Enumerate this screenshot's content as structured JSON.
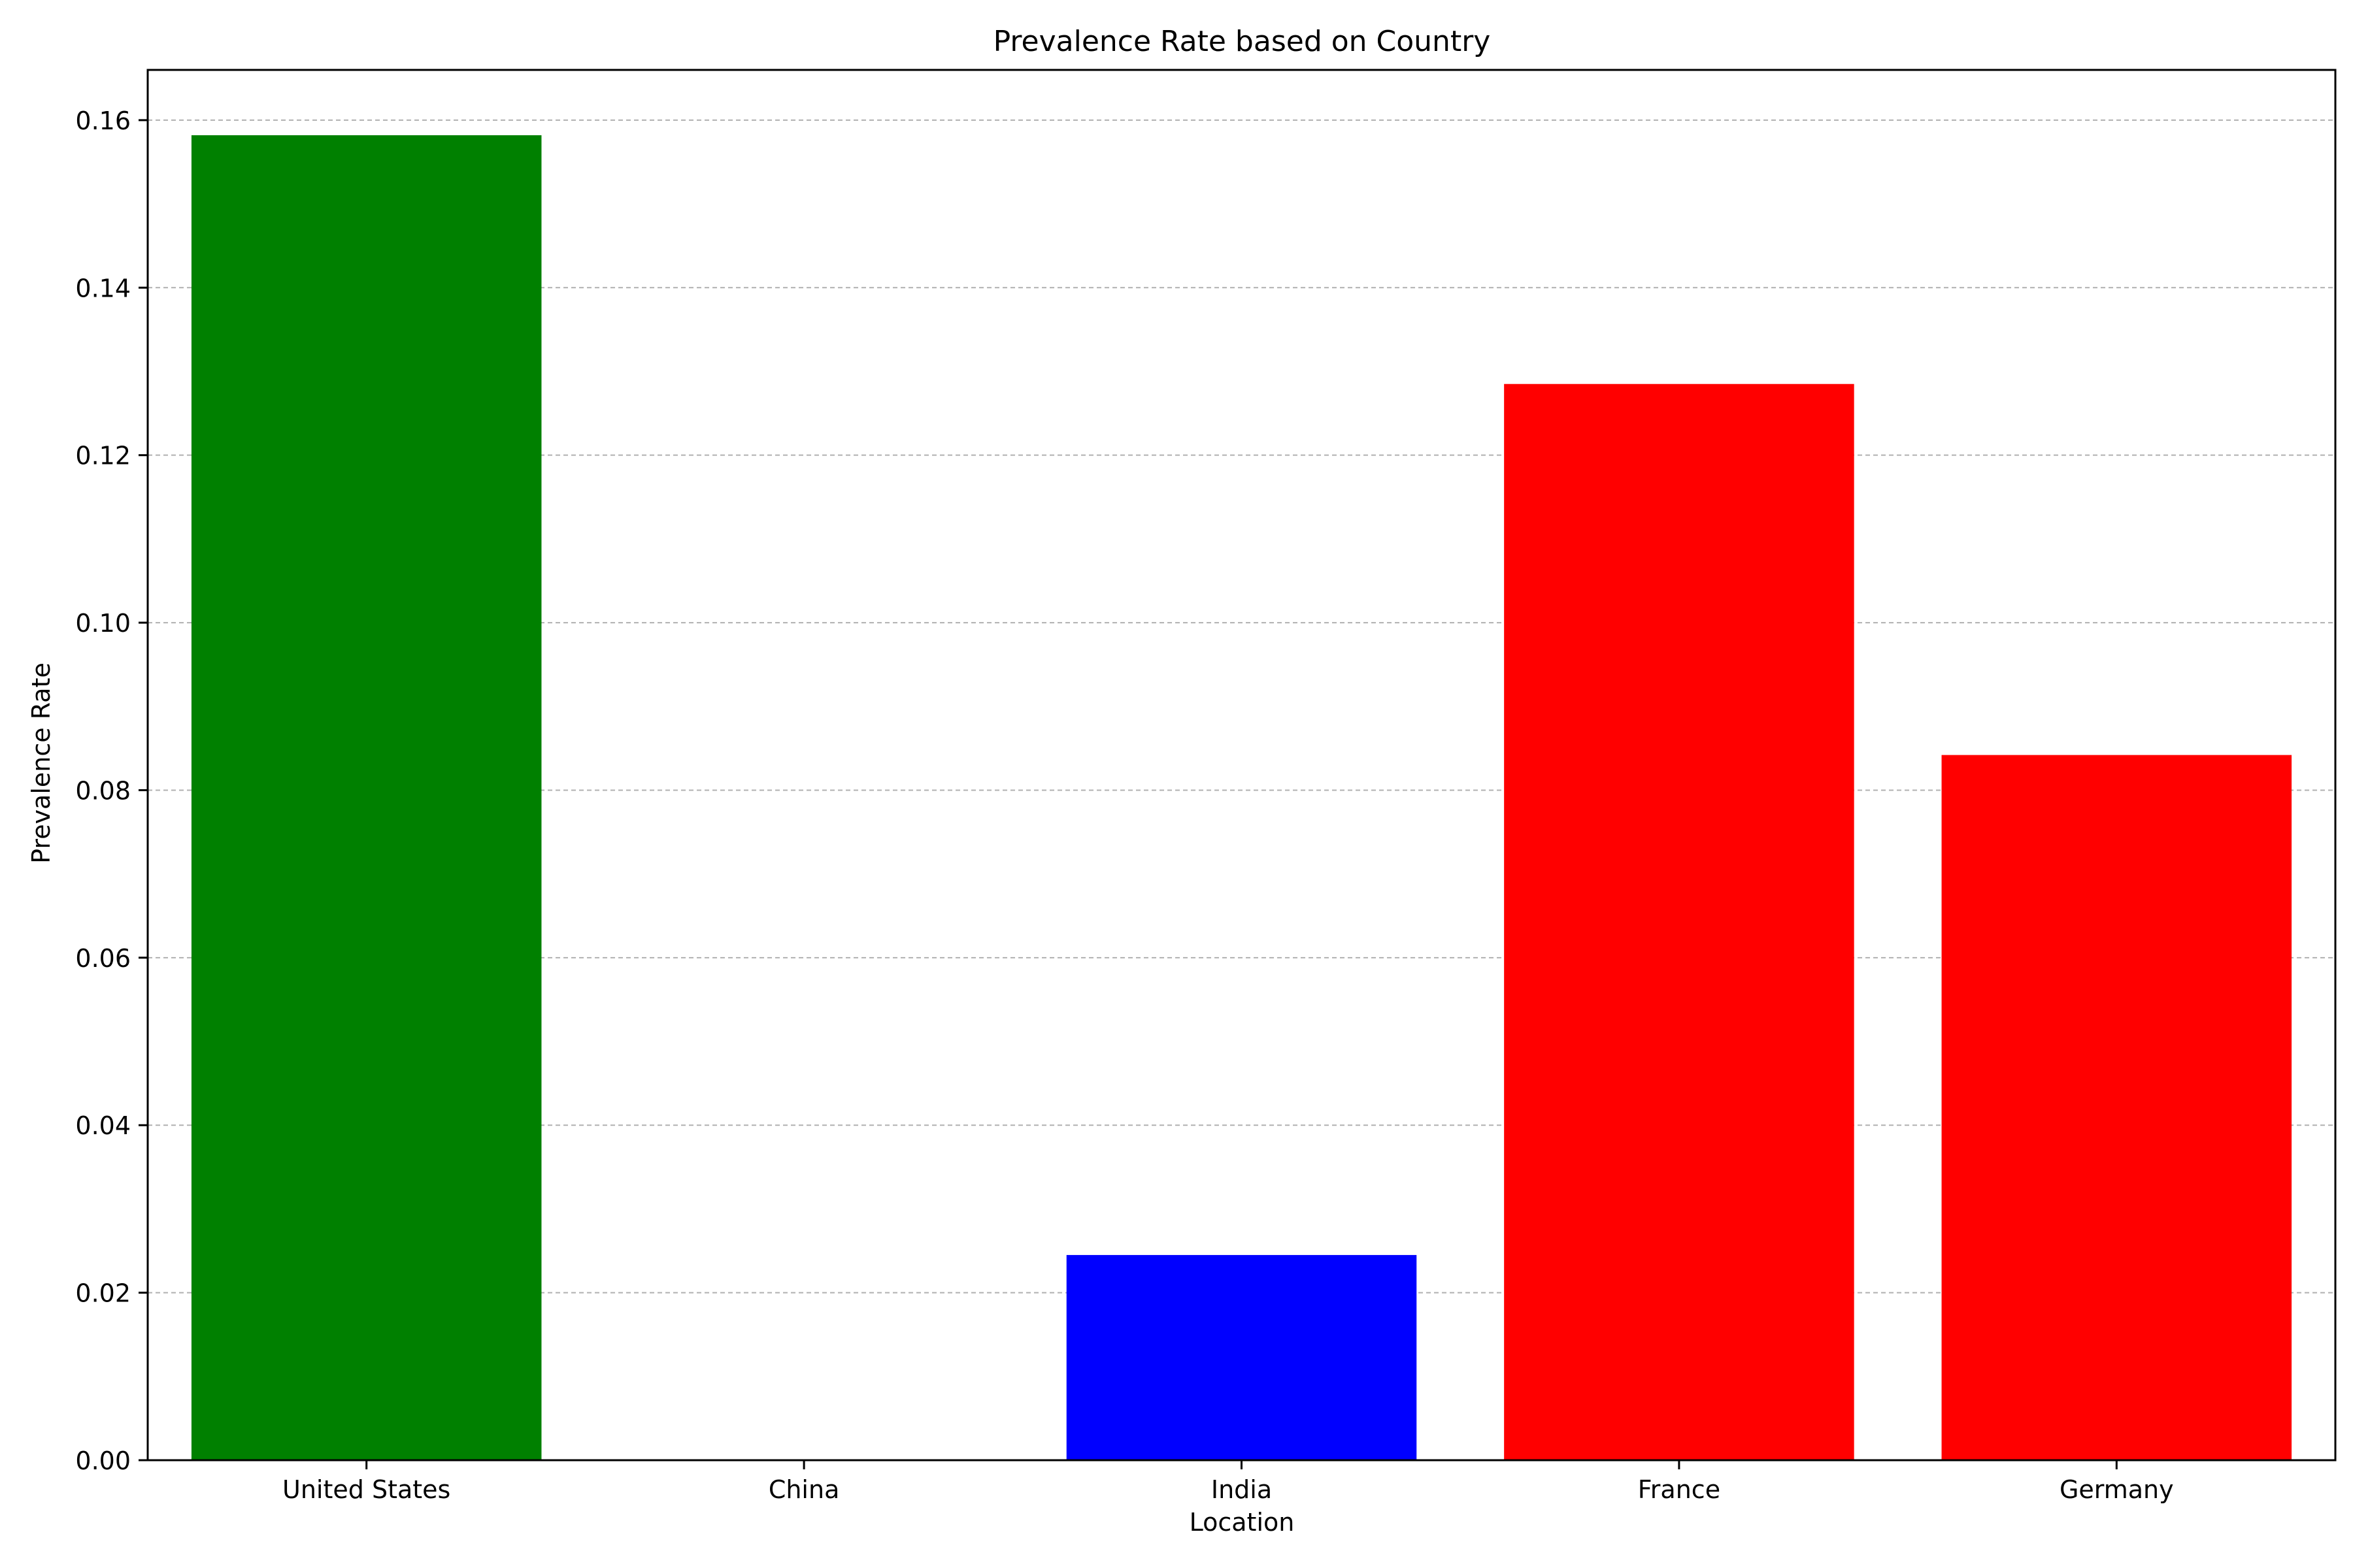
{
  "chart_data": {
    "type": "bar",
    "title": "Prevalence Rate based on Country",
    "xlabel": "Location",
    "ylabel": "Prevalence Rate",
    "categories": [
      "United States",
      "China",
      "India",
      "France",
      "Germany"
    ],
    "values": [
      0.1582,
      0.0,
      0.0245,
      0.1285,
      0.0842
    ],
    "colors": [
      "#008000",
      "#0000ff",
      "#0000ff",
      "#ff0000",
      "#ff0000"
    ],
    "ylim": [
      0,
      0.166
    ],
    "yticks": [
      0.0,
      0.02,
      0.04,
      0.06,
      0.08,
      0.1,
      0.12,
      0.14,
      0.16
    ],
    "ytick_labels": [
      "0.00",
      "0.02",
      "0.04",
      "0.06",
      "0.08",
      "0.10",
      "0.12",
      "0.14",
      "0.16"
    ],
    "grid": "y-dashed",
    "grid_color": "#b0b0b0",
    "legend": "none"
  }
}
